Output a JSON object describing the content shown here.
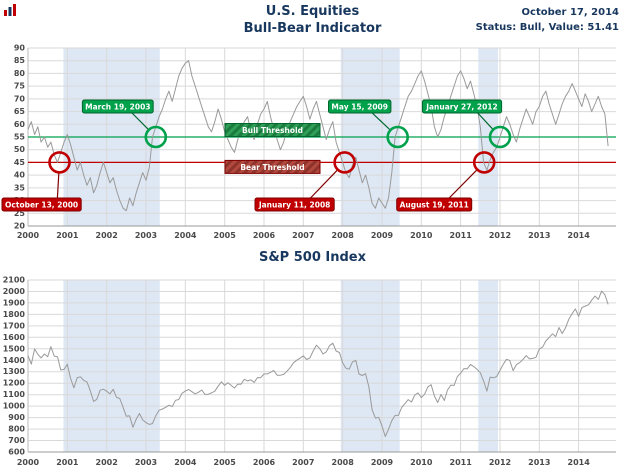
{
  "header": {
    "title_line1": "U.S. Equities",
    "title_line2": "Bull-Bear Indicator",
    "date": "October 17, 2014",
    "status": "Status: Bull, Value: 51.41"
  },
  "colors": {
    "navy": "#17375E",
    "bull": "#00A14B",
    "bull_dark": "#00662F",
    "bear": "#C00000",
    "bear_dark": "#7F0000",
    "band": "#DEE8F4",
    "grid": "#D9D9D9",
    "line": "#9A9A9A"
  },
  "chart_data": [
    {
      "type": "line",
      "title": "U.S. Equities Bull-Bear Indicator",
      "xlabel": "",
      "ylabel": "",
      "ylim": [
        20,
        90
      ],
      "ytick_step": 5,
      "xlim": [
        2000,
        2014.95
      ],
      "xtick_years": [
        2000,
        2001,
        2002,
        2003,
        2004,
        2005,
        2006,
        2007,
        2008,
        2009,
        2010,
        2011,
        2012,
        2013,
        2014
      ],
      "grid": true,
      "line_color": "#9A9A9A",
      "start_year": 2000,
      "points_per_year": 12,
      "values": [
        58,
        61,
        56,
        59,
        53,
        55,
        51,
        53,
        48,
        45,
        49,
        53,
        56,
        52,
        47,
        42,
        45,
        40,
        36,
        39,
        33,
        36,
        41,
        45,
        41,
        37,
        39,
        34,
        30,
        27,
        26,
        31,
        28,
        33,
        37,
        41,
        38,
        43,
        55,
        59,
        63,
        66,
        70,
        73,
        69,
        74,
        79,
        82,
        84,
        85,
        79,
        75,
        71,
        67,
        63,
        59,
        57,
        61,
        66,
        62,
        57,
        54,
        51,
        49,
        54,
        58,
        61,
        63,
        57,
        54,
        60,
        64,
        66,
        69,
        63,
        58,
        54,
        50,
        53,
        58,
        61,
        64,
        67,
        69,
        71,
        67,
        62,
        66,
        69,
        64,
        59,
        54,
        58,
        61,
        53,
        49,
        45,
        41,
        39,
        44,
        47,
        42,
        37,
        40,
        35,
        29,
        27,
        31,
        29,
        27,
        31,
        41,
        55,
        59,
        63,
        67,
        71,
        73,
        76,
        79,
        81,
        77,
        72,
        67,
        59,
        55,
        58,
        63,
        67,
        71,
        75,
        79,
        81,
        78,
        74,
        77,
        72,
        67,
        59,
        45,
        42,
        46,
        49,
        51,
        55,
        59,
        63,
        60,
        56,
        53,
        58,
        62,
        66,
        63,
        60,
        65,
        67,
        71,
        73,
        68,
        64,
        60,
        64,
        68,
        71,
        73,
        76,
        73,
        70,
        67,
        72,
        69,
        65,
        68,
        71,
        67,
        64,
        51.41
      ],
      "bands": [
        [
          2000.9,
          2003.35
        ],
        [
          2007.95,
          2009.45
        ],
        [
          2011.45,
          2011.95
        ]
      ],
      "thresholds": [
        {
          "label": "Bull Threshold",
          "value": 55,
          "color": "#00A14B",
          "kind": "bull"
        },
        {
          "label": "Bear Threshold",
          "value": 45,
          "color": "#C00000",
          "kind": "bear"
        }
      ],
      "annotations": [
        {
          "label": "March 19, 2003",
          "year": 2003.25,
          "value": 55,
          "kind": "bull"
        },
        {
          "label": "May 15, 2009",
          "year": 2009.4,
          "value": 55,
          "kind": "bull"
        },
        {
          "label": "January 27, 2012",
          "year": 2012.0,
          "value": 55,
          "kind": "bull"
        },
        {
          "label": "October 13, 2000",
          "year": 2000.8,
          "value": 45,
          "kind": "bear"
        },
        {
          "label": "January 11, 2008",
          "year": 2008.05,
          "value": 45,
          "kind": "bear"
        },
        {
          "label": "August 19, 2011",
          "year": 2011.6,
          "value": 45,
          "kind": "bear"
        }
      ]
    },
    {
      "type": "line",
      "title": "S&P 500 Index",
      "xlabel": "",
      "ylabel": "",
      "ylim": [
        600,
        2100
      ],
      "ytick_step": 100,
      "xlim": [
        2000,
        2014.95
      ],
      "xtick_years": [
        2000,
        2001,
        2002,
        2003,
        2004,
        2005,
        2006,
        2007,
        2008,
        2009,
        2010,
        2011,
        2012,
        2013,
        2014
      ],
      "grid": true,
      "line_color": "#9A9A9A",
      "start_year": 2000,
      "points_per_year": 12,
      "values": [
        1441,
        1366,
        1499,
        1452,
        1421,
        1455,
        1431,
        1518,
        1437,
        1429,
        1315,
        1320,
        1366,
        1240,
        1160,
        1249,
        1256,
        1224,
        1211,
        1134,
        1041,
        1060,
        1139,
        1148,
        1130,
        1107,
        1147,
        1077,
        1067,
        990,
        911,
        916,
        815,
        886,
        936,
        880,
        856,
        841,
        848,
        917,
        964,
        975,
        990,
        1008,
        996,
        1051,
        1058,
        1112,
        1131,
        1145,
        1126,
        1107,
        1121,
        1141,
        1102,
        1104,
        1115,
        1130,
        1174,
        1212,
        1181,
        1204,
        1181,
        1157,
        1192,
        1191,
        1234,
        1220,
        1229,
        1207,
        1249,
        1248,
        1280,
        1281,
        1295,
        1311,
        1270,
        1270,
        1277,
        1304,
        1336,
        1378,
        1401,
        1418,
        1438,
        1407,
        1421,
        1482,
        1531,
        1503,
        1455,
        1474,
        1527,
        1549,
        1481,
        1468,
        1379,
        1331,
        1323,
        1386,
        1400,
        1280,
        1267,
        1283,
        1166,
        969,
        896,
        903,
        826,
        735,
        798,
        873,
        919,
        919,
        987,
        1021,
        1057,
        1036,
        1096,
        1115,
        1074,
        1104,
        1169,
        1187,
        1089,
        1031,
        1102,
        1049,
        1141,
        1183,
        1181,
        1258,
        1286,
        1327,
        1326,
        1364,
        1345,
        1321,
        1292,
        1219,
        1131,
        1253,
        1247,
        1258,
        1312,
        1366,
        1408,
        1398,
        1310,
        1362,
        1379,
        1407,
        1441,
        1412,
        1416,
        1426,
        1498,
        1515,
        1569,
        1598,
        1631,
        1606,
        1686,
        1633,
        1682,
        1757,
        1806,
        1848,
        1783,
        1859,
        1872,
        1884,
        1924,
        1960,
        1931,
        2003,
        1972,
        1887
      ],
      "bands": [
        [
          2000.9,
          2003.35
        ],
        [
          2007.95,
          2009.45
        ],
        [
          2011.45,
          2011.95
        ]
      ]
    }
  ]
}
